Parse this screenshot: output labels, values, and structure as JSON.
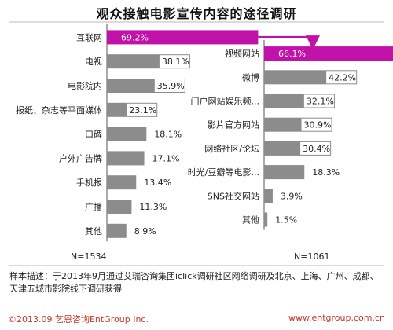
{
  "title": "观众接触电影宣传内容的途径调研",
  "colors": {
    "bar": "#8c8c8c",
    "highlight": "#c012a8",
    "axis": "#555555",
    "divider": "#b8b8b8",
    "footer": "#c0392b"
  },
  "chart_data": [
    {
      "type": "bar",
      "orientation": "horizontal",
      "categories": [
        "互联网",
        "电视",
        "电影院内",
        "报纸、杂志等平面媒体",
        "口碑",
        "户外广告牌",
        "手机报",
        "广播",
        "其他"
      ],
      "values": [
        69.2,
        38.1,
        35.9,
        23.1,
        18.1,
        17.1,
        13.4,
        11.3,
        8.9
      ],
      "value_labels": [
        "69.2%",
        "38.1%",
        "35.9%",
        "23.1%",
        "18.1%",
        "17.1%",
        "13.4%",
        "11.3%",
        "8.9%"
      ],
      "highlight_index": 0,
      "sample_label": "N=1534"
    },
    {
      "type": "bar",
      "orientation": "horizontal",
      "categories": [
        "视频网站",
        "微博",
        "门户网站娱乐频...",
        "影片官方网站",
        "网络社区/论坛",
        "时光/豆瓣等电影...",
        "SNS社交网站",
        "其他"
      ],
      "values": [
        66.1,
        42.2,
        32.1,
        30.9,
        30.4,
        18.3,
        3.9,
        1.5
      ],
      "value_labels": [
        "66.1%",
        "42.2%",
        "32.1%",
        "30.9%",
        "30.4%",
        "18.3%",
        "3.9%",
        "1.5%"
      ],
      "highlight_index": 0,
      "sample_label": "N=1061"
    }
  ],
  "footer": {
    "note": "样本描述：于2013年9月通过艾瑞咨询集团iclick调研社区网络调研及北京、上海、广州、成都、天津五城市影院线下调研获得",
    "copyright": "©2013.09  艺恩咨询EntGroup Inc.",
    "website": "www.entgroup.com.cn"
  }
}
